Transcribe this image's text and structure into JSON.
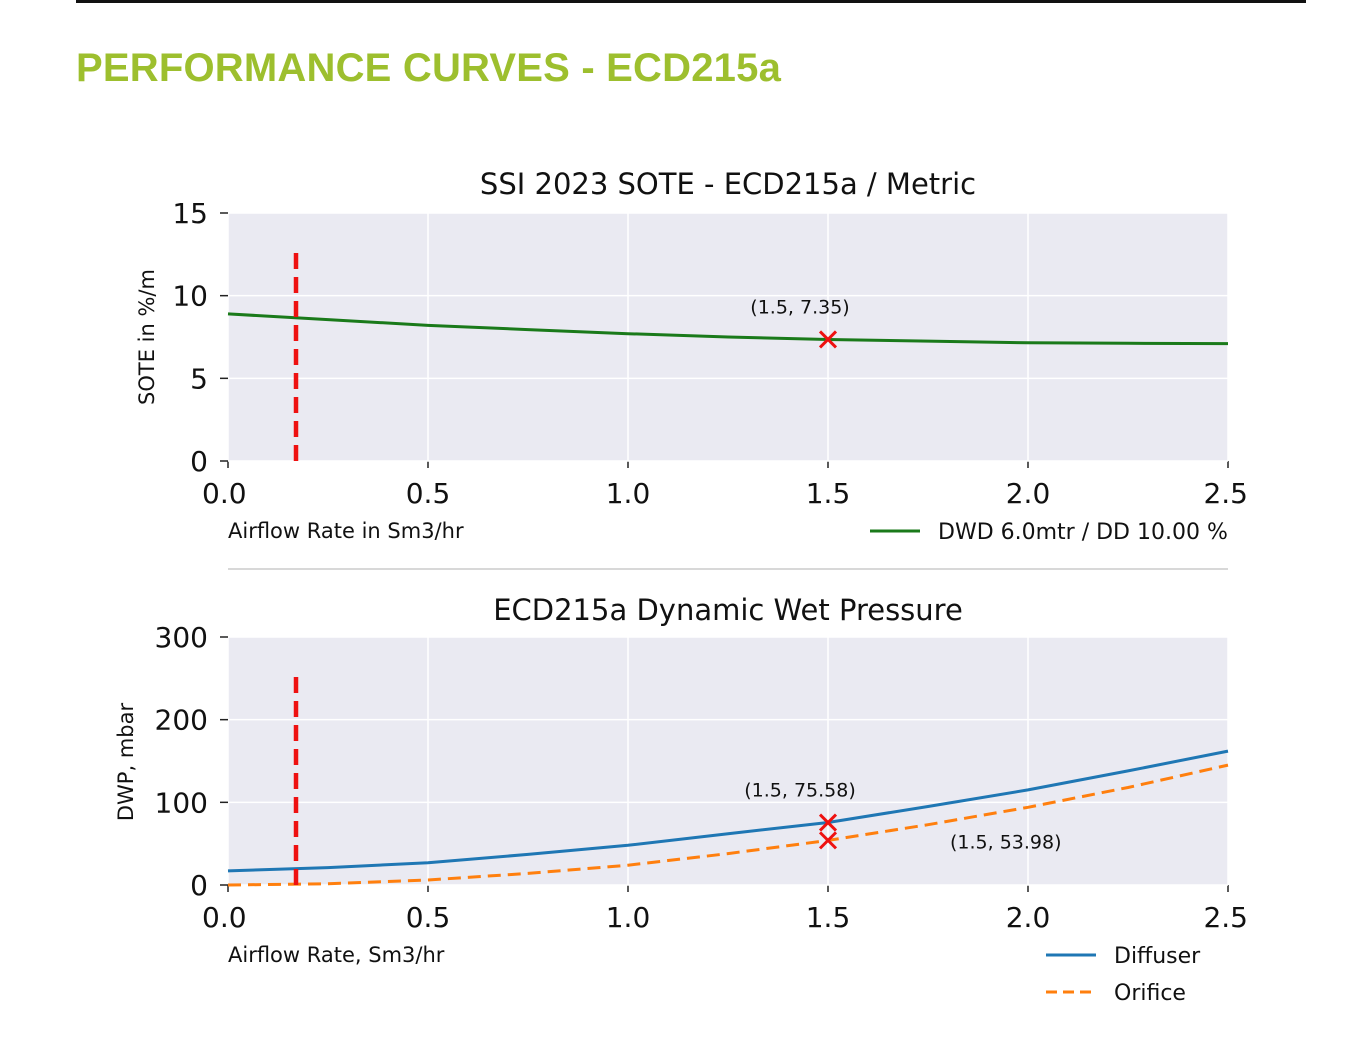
{
  "page": {
    "heading": "PERFORMANCE CURVES - ECD215a",
    "heading_color": "#9dbf2e"
  },
  "chart_data": [
    {
      "type": "line",
      "title": "SSI 2023 SOTE - ECD215a / Metric",
      "xlabel": "Airflow Rate in Sm3/hr",
      "ylabel": "SOTE in %/m",
      "xlim": [
        0,
        2.5
      ],
      "ylim": [
        0,
        15
      ],
      "x_ticks": [
        "0.0",
        "0.5",
        "1.0",
        "1.5",
        "2.0",
        "2.5"
      ],
      "y_ticks": [
        "0",
        "5",
        "10",
        "15"
      ],
      "grid": true,
      "legend_position": "bottom-right",
      "series": [
        {
          "name": "DWD 6.0mtr / DD 10.00 %",
          "color": "#1a7a1a",
          "style": "solid",
          "x": [
            0.0,
            0.25,
            0.5,
            0.75,
            1.0,
            1.25,
            1.5,
            1.75,
            2.0,
            2.25,
            2.5
          ],
          "y": [
            8.9,
            8.55,
            8.2,
            7.95,
            7.7,
            7.5,
            7.35,
            7.25,
            7.15,
            7.12,
            7.1
          ]
        }
      ],
      "reference_line": {
        "x": 0.17,
        "y_range": [
          0,
          12.7
        ],
        "color": "#ee1111",
        "style": "dashed"
      },
      "markers": [
        {
          "x": 1.5,
          "y": 7.35,
          "label": "(1.5, 7.35)",
          "color": "#ee1111",
          "label_position": "above"
        }
      ]
    },
    {
      "type": "line",
      "title": "ECD215a Dynamic Wet Pressure",
      "xlabel": "Airflow Rate, Sm3/hr",
      "ylabel": "DWP, mbar",
      "xlim": [
        0,
        2.5
      ],
      "ylim": [
        0,
        300
      ],
      "x_ticks": [
        "0.0",
        "0.5",
        "1.0",
        "1.5",
        "2.0",
        "2.5"
      ],
      "y_ticks": [
        "0",
        "100",
        "200",
        "300"
      ],
      "grid": true,
      "legend_position": "bottom-right",
      "series": [
        {
          "name": "Diffuser",
          "color": "#1f77b4",
          "style": "solid",
          "x": [
            0.0,
            0.25,
            0.5,
            0.75,
            1.0,
            1.25,
            1.5,
            1.75,
            2.0,
            2.25,
            2.5
          ],
          "y": [
            17,
            21,
            27,
            37,
            48,
            62,
            75.58,
            95,
            115,
            138,
            162
          ]
        },
        {
          "name": "Orifice",
          "color": "#ff7f0e",
          "style": "dashed",
          "x": [
            0.0,
            0.25,
            0.5,
            0.75,
            1.0,
            1.25,
            1.5,
            1.75,
            2.0,
            2.25,
            2.5
          ],
          "y": [
            0,
            1.5,
            6,
            14,
            24,
            38,
            53.98,
            73,
            94,
            118,
            145
          ]
        }
      ],
      "reference_line": {
        "x": 0.17,
        "y_range": [
          0,
          255
        ],
        "color": "#ee1111",
        "style": "dashed"
      },
      "markers": [
        {
          "x": 1.5,
          "y": 75.58,
          "label": "(1.5, 75.58)",
          "color": "#ee1111",
          "label_position": "above"
        },
        {
          "x": 1.5,
          "y": 53.98,
          "label": "(1.5, 53.98)",
          "color": "#ee1111",
          "label_position": "right-below"
        }
      ]
    }
  ]
}
